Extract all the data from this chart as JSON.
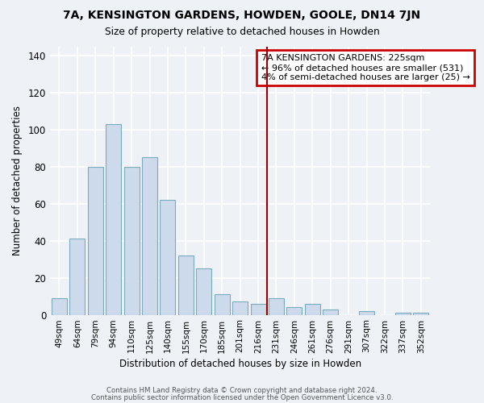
{
  "title": "7A, KENSINGTON GARDENS, HOWDEN, GOOLE, DN14 7JN",
  "subtitle": "Size of property relative to detached houses in Howden",
  "xlabel": "Distribution of detached houses by size in Howden",
  "ylabel": "Number of detached properties",
  "bar_labels": [
    "49sqm",
    "64sqm",
    "79sqm",
    "94sqm",
    "110sqm",
    "125sqm",
    "140sqm",
    "155sqm",
    "170sqm",
    "185sqm",
    "201sqm",
    "216sqm",
    "231sqm",
    "246sqm",
    "261sqm",
    "276sqm",
    "291sqm",
    "307sqm",
    "322sqm",
    "337sqm",
    "352sqm"
  ],
  "bar_values": [
    9,
    41,
    80,
    103,
    80,
    85,
    62,
    32,
    25,
    11,
    7,
    6,
    9,
    4,
    6,
    3,
    0,
    2,
    0,
    1,
    1
  ],
  "bar_color": "#ccdaeb",
  "bar_edge_color": "#7aabbf",
  "ylim": [
    0,
    145
  ],
  "yticks": [
    0,
    20,
    40,
    60,
    80,
    100,
    120,
    140
  ],
  "vline_label_idx": 12,
  "vline_color": "#990000",
  "annotation_title": "7A KENSINGTON GARDENS: 225sqm",
  "annotation_line1": "← 96% of detached houses are smaller (531)",
  "annotation_line2": "4% of semi-detached houses are larger (25) →",
  "annotation_box_facecolor": "#ffffff",
  "annotation_box_edgecolor": "#cc0000",
  "footer1": "Contains HM Land Registry data © Crown copyright and database right 2024.",
  "footer2": "Contains public sector information licensed under the Open Government Licence v3.0.",
  "bg_color": "#eef2f7",
  "grid_color": "#ffffff"
}
